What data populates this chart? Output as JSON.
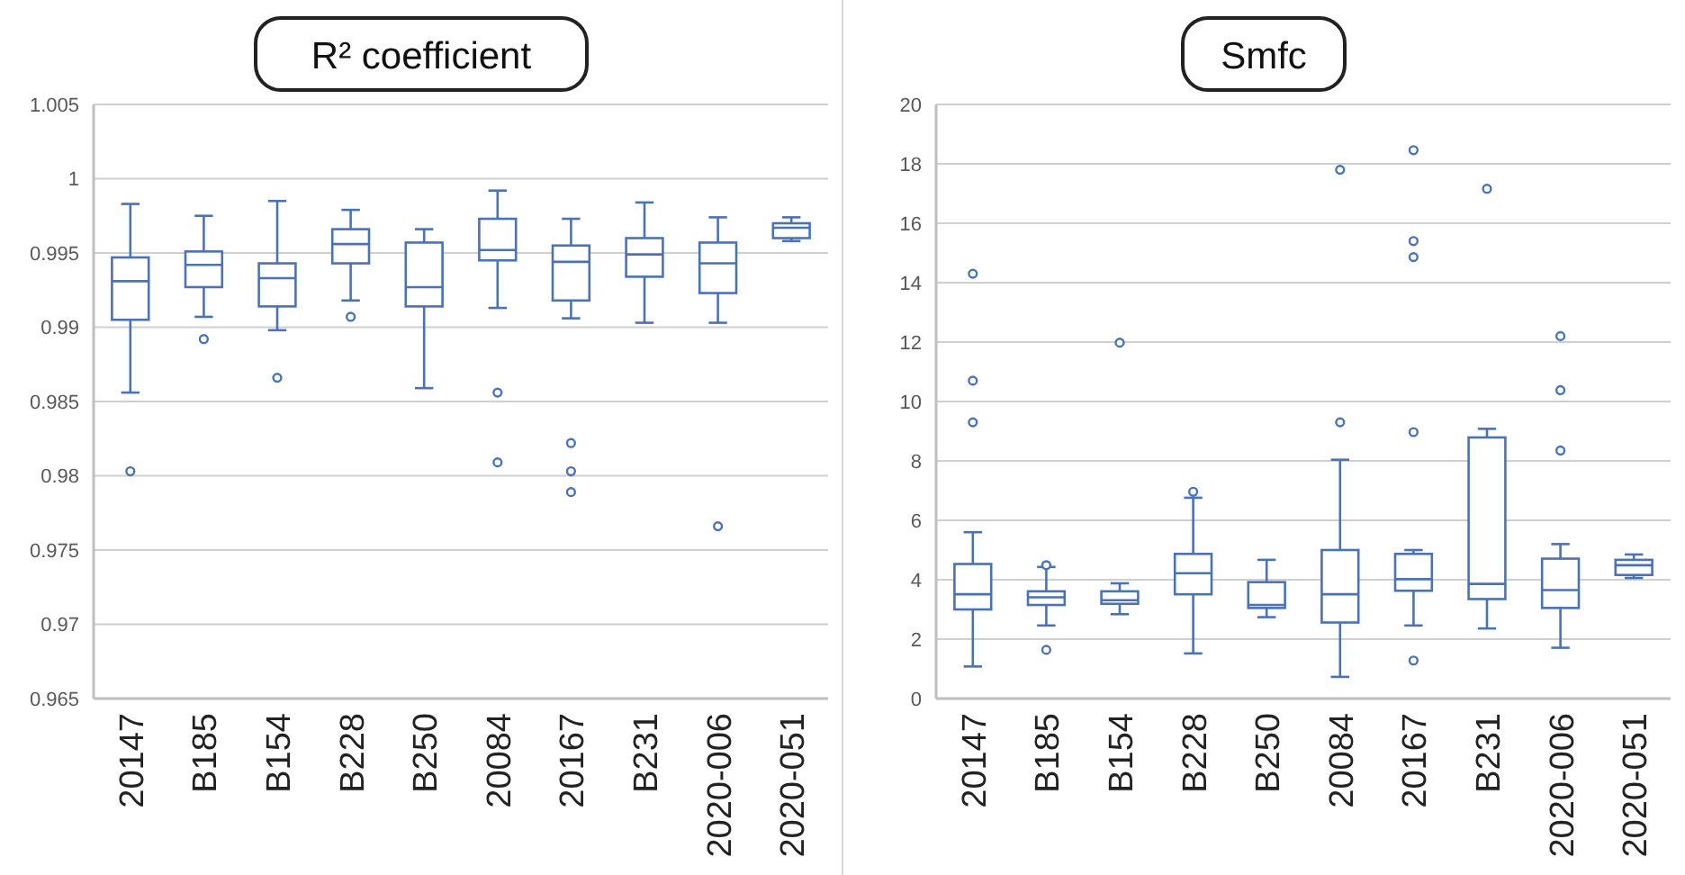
{
  "chart_data": [
    {
      "type": "box",
      "title": "R² coefficient",
      "categories": [
        "20147",
        "B185",
        "B154",
        "B228",
        "B250",
        "20084",
        "20167",
        "B231",
        "2020-006",
        "2020-051"
      ],
      "color": "#4a72b8",
      "ylim": [
        0.965,
        1.005
      ],
      "yticks": [
        0.965,
        0.97,
        0.975,
        0.98,
        0.985,
        0.99,
        0.995,
        1,
        1.005
      ],
      "grid": "y",
      "boxes": [
        {
          "low": 0.9856,
          "q1": 0.9905,
          "median": 0.9931,
          "q3": 0.9947,
          "high": 0.9983,
          "outliers": [
            0.9803
          ]
        },
        {
          "low": 0.9907,
          "q1": 0.9927,
          "median": 0.9942,
          "q3": 0.9951,
          "high": 0.9975,
          "outliers": [
            0.9892
          ]
        },
        {
          "low": 0.9898,
          "q1": 0.9914,
          "median": 0.9933,
          "q3": 0.9943,
          "high": 0.9985,
          "outliers": [
            0.9866
          ]
        },
        {
          "low": 0.9918,
          "q1": 0.9943,
          "median": 0.9956,
          "q3": 0.9966,
          "high": 0.9979,
          "outliers": [
            0.9907
          ]
        },
        {
          "low": 0.9859,
          "q1": 0.9914,
          "median": 0.9927,
          "q3": 0.9957,
          "high": 0.9966
        },
        {
          "low": 0.9913,
          "q1": 0.9945,
          "median": 0.9952,
          "q3": 0.9973,
          "high": 0.9992,
          "outliers": [
            0.9856,
            0.9809
          ]
        },
        {
          "low": 0.9906,
          "q1": 0.9918,
          "median": 0.9944,
          "q3": 0.9955,
          "high": 0.9973,
          "outliers": [
            0.9822,
            0.9803,
            0.9789
          ]
        },
        {
          "low": 0.9903,
          "q1": 0.9934,
          "median": 0.9949,
          "q3": 0.996,
          "high": 0.9984
        },
        {
          "low": 0.9903,
          "q1": 0.9923,
          "median": 0.9943,
          "q3": 0.9957,
          "high": 0.9974,
          "outliers": [
            0.9766
          ]
        },
        {
          "low": 0.9958,
          "q1": 0.996,
          "median": 0.9967,
          "q3": 0.997,
          "high": 0.9974
        }
      ]
    },
    {
      "type": "box",
      "title": "Smfc",
      "categories": [
        "20147",
        "B185",
        "B154",
        "B228",
        "B250",
        "20084",
        "20167",
        "B231",
        "2020-006",
        "2020-051"
      ],
      "color": "#4a72b8",
      "ylim": [
        0,
        20
      ],
      "yticks": [
        0,
        2,
        4,
        6,
        8,
        10,
        12,
        14,
        16,
        18,
        20
      ],
      "grid": "y",
      "boxes": [
        {
          "low": 1.08,
          "q1": 3.0,
          "median": 3.51,
          "q3": 4.53,
          "high": 5.6,
          "outliers": [
            14.3,
            10.7,
            9.3
          ]
        },
        {
          "low": 2.46,
          "q1": 3.15,
          "median": 3.41,
          "q3": 3.61,
          "high": 4.43,
          "outliers": [
            4.49,
            1.64
          ]
        },
        {
          "low": 2.84,
          "q1": 3.19,
          "median": 3.31,
          "q3": 3.61,
          "high": 3.88,
          "outliers": [
            11.98
          ]
        },
        {
          "low": 1.52,
          "q1": 3.51,
          "median": 4.22,
          "q3": 4.87,
          "high": 6.76,
          "outliers": [
            6.96
          ]
        },
        {
          "low": 2.74,
          "q1": 3.05,
          "median": 3.15,
          "q3": 3.92,
          "high": 4.67
        },
        {
          "low": 0.73,
          "q1": 2.56,
          "median": 3.51,
          "q3": 5.0,
          "high": 8.04,
          "outliers": [
            17.8,
            9.3
          ]
        },
        {
          "low": 2.46,
          "q1": 3.63,
          "median": 4.02,
          "q3": 4.87,
          "high": 5.0,
          "outliers": [
            18.46,
            15.4,
            14.86,
            8.97,
            1.28
          ]
        },
        {
          "low": 2.36,
          "q1": 3.35,
          "median": 3.86,
          "q3": 8.79,
          "high": 9.08,
          "outliers": [
            17.16
          ]
        },
        {
          "low": 1.71,
          "q1": 3.05,
          "median": 3.65,
          "q3": 4.71,
          "high": 5.2,
          "outliers": [
            12.2,
            10.38,
            8.35
          ]
        },
        {
          "low": 4.06,
          "q1": 4.16,
          "median": 4.49,
          "q3": 4.67,
          "high": 4.85
        }
      ]
    }
  ]
}
